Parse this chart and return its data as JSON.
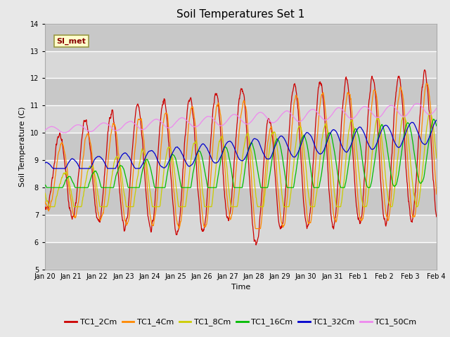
{
  "title": "Soil Temperatures Set 1",
  "xlabel": "Time",
  "ylabel": "Soil Temperature (C)",
  "ylim": [
    5.0,
    14.0
  ],
  "yticks": [
    5.0,
    6.0,
    7.0,
    8.0,
    9.0,
    10.0,
    11.0,
    12.0,
    13.0,
    14.0
  ],
  "series_colors": {
    "TC1_2Cm": "#cc0000",
    "TC1_4Cm": "#ff8800",
    "TC1_8Cm": "#cccc00",
    "TC1_16Cm": "#00bb00",
    "TC1_32Cm": "#0000cc",
    "TC1_50Cm": "#ee88ee"
  },
  "series_names": [
    "TC1_2Cm",
    "TC1_4Cm",
    "TC1_8Cm",
    "TC1_16Cm",
    "TC1_32Cm",
    "TC1_50Cm"
  ],
  "annotation_text": "SI_met",
  "background_color": "#e8e8e8",
  "plot_bg_color": "#d8d8d8",
  "grid_color": "#c0c0c0",
  "title_fontsize": 11,
  "axis_fontsize": 8,
  "tick_fontsize": 7,
  "legend_fontsize": 8,
  "tick_labels": [
    "Jan 20",
    "Jan 21",
    "Jan 22",
    "Jan 23",
    "Jan 24",
    "Jan 25",
    "Jan 26",
    "Jan 27",
    "Jan 28",
    "Jan 29",
    "Jan 30",
    "Jan 31",
    "Feb 1",
    "Feb 2",
    "Feb 3",
    "Feb 4"
  ],
  "tick_positions": [
    0,
    1,
    2,
    3,
    4,
    5,
    6,
    7,
    8,
    9,
    10,
    11,
    12,
    13,
    14,
    15
  ]
}
